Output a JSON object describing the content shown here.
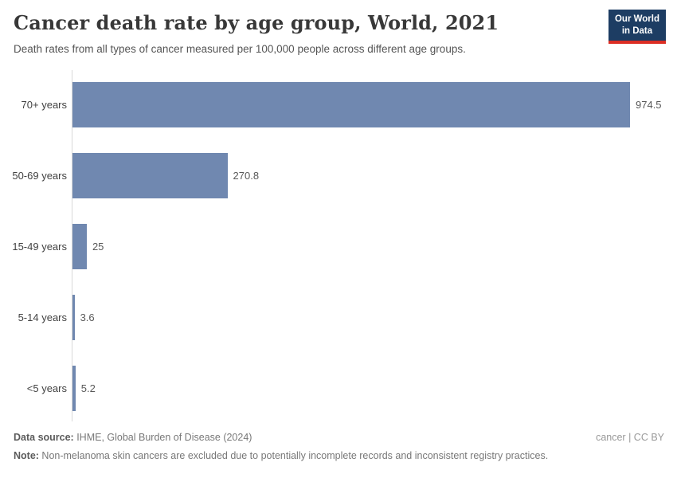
{
  "header": {
    "title": "Cancer death rate by age group, World, 2021",
    "subtitle": "Death rates from all types of cancer measured per 100,000 people across different age groups.",
    "logo": {
      "line1": "Our World",
      "line2": "in Data"
    }
  },
  "chart_data": {
    "type": "bar",
    "orientation": "horizontal",
    "title": "Cancer death rate by age group, World, 2021",
    "xlabel": "",
    "ylabel": "",
    "categories": [
      "70+ years",
      "50-69 years",
      "15-49 years",
      "5-14 years",
      "<5 years"
    ],
    "values": [
      974.5,
      270.8,
      25,
      3.6,
      5.2
    ],
    "value_labels": [
      "974.5",
      "270.8",
      "25",
      "3.6",
      "5.2"
    ],
    "unit": "deaths per 100,000 people",
    "xlim": [
      0,
      974.5
    ],
    "grid": false,
    "legend": "none",
    "bar_color": "#7088b0"
  },
  "footer": {
    "data_source_label": "Data source:",
    "data_source_text": " IHME, Global Burden of Disease (2024)",
    "note_label": "Note:",
    "note_text": " Non-melanoma skin cancers are excluded due to potentially incomplete records and inconsistent registry practices.",
    "license": "cancer | CC BY"
  },
  "colors": {
    "bar": "#7088b0",
    "logo_bg": "#1d3d63",
    "logo_underline": "#dc2e24",
    "axis_line": "#d8d8d8",
    "title_text": "#383838"
  }
}
